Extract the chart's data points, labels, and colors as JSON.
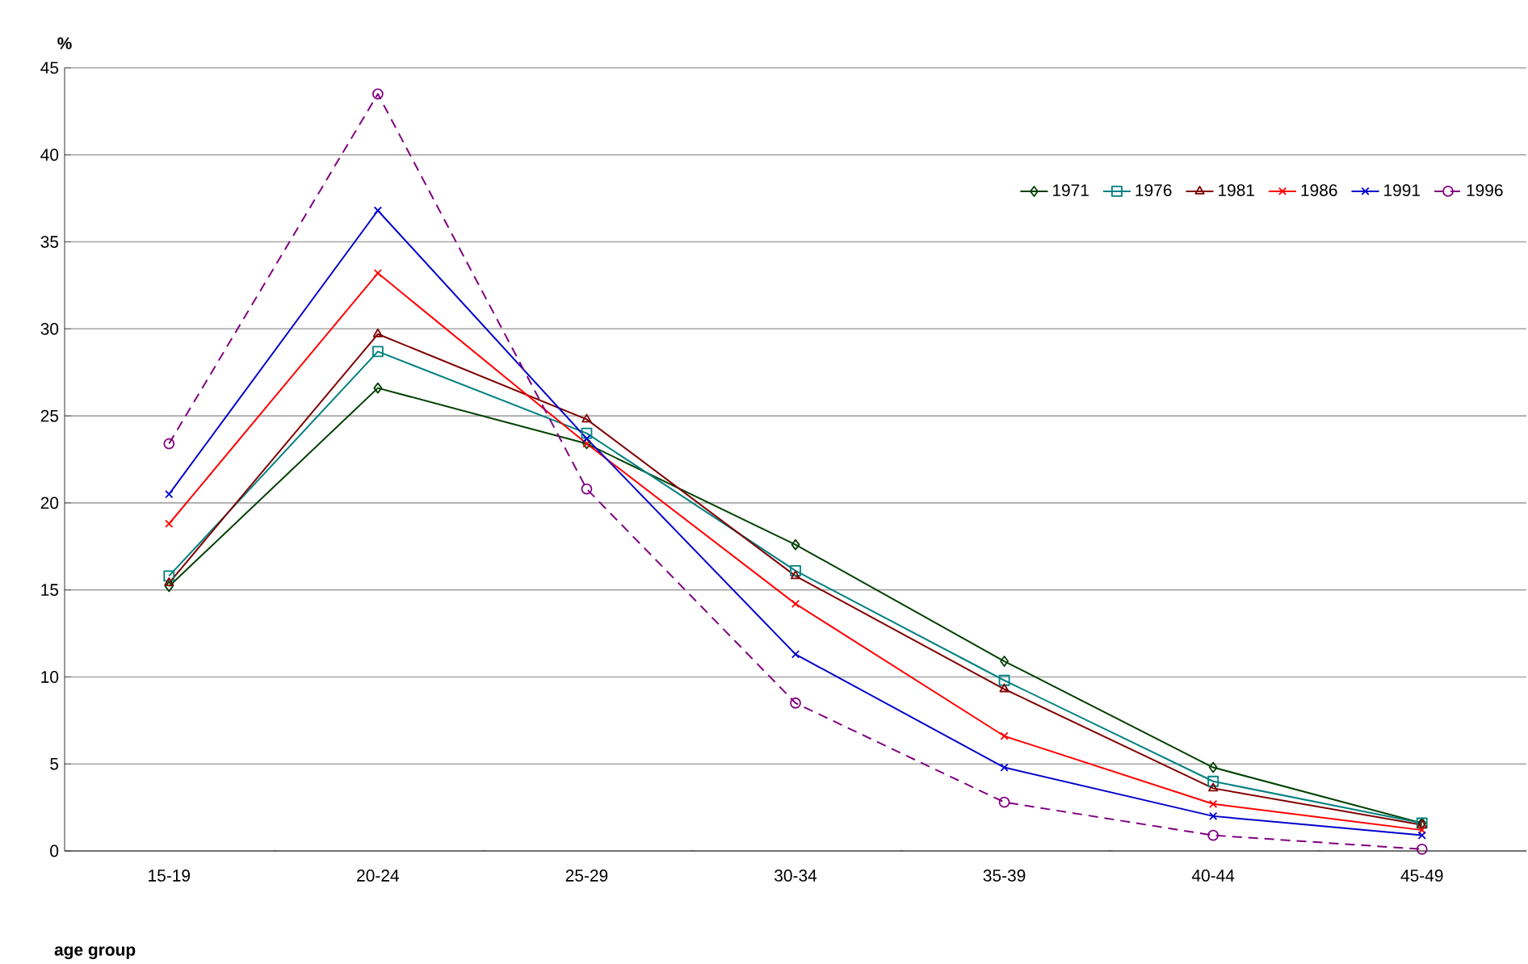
{
  "chart_data": {
    "type": "line",
    "xlabel": "age group",
    "ylabel": "%",
    "categories": [
      "15-19",
      "20-24",
      "25-29",
      "30-34",
      "35-39",
      "40-44",
      "45-49"
    ],
    "ylim": [
      0,
      45
    ],
    "yticks": [
      0,
      5,
      10,
      15,
      20,
      25,
      30,
      35,
      40,
      45
    ],
    "grid": "y",
    "legend": "top right",
    "series": [
      {
        "name": "1971",
        "color": "#004000",
        "marker": "diamond",
        "line_style": "solid",
        "values": [
          15.2,
          26.6,
          23.4,
          17.6,
          10.9,
          4.8,
          1.6
        ]
      },
      {
        "name": "1976",
        "color": "#008080",
        "marker": "square",
        "line_style": "solid",
        "values": [
          15.8,
          28.7,
          24.0,
          16.1,
          9.8,
          4.0,
          1.6
        ]
      },
      {
        "name": "1981",
        "color": "#800000",
        "marker": "triangle",
        "line_style": "solid",
        "values": [
          15.4,
          29.7,
          24.8,
          15.8,
          9.3,
          3.6,
          1.5
        ]
      },
      {
        "name": "1986",
        "color": "#ff0000",
        "marker": "cross",
        "line_style": "solid",
        "values": [
          18.8,
          33.2,
          23.4,
          14.2,
          6.6,
          2.7,
          1.2
        ]
      },
      {
        "name": "1991",
        "color": "#0000cc",
        "marker": "cross",
        "line_style": "solid",
        "values": [
          20.5,
          36.8,
          23.7,
          11.3,
          4.8,
          2.0,
          0.9
        ]
      },
      {
        "name": "1996",
        "color": "#800080",
        "marker": "circle",
        "line_style": "dashed",
        "values": [
          23.4,
          43.5,
          20.8,
          8.5,
          2.8,
          0.9,
          0.1
        ]
      }
    ]
  }
}
